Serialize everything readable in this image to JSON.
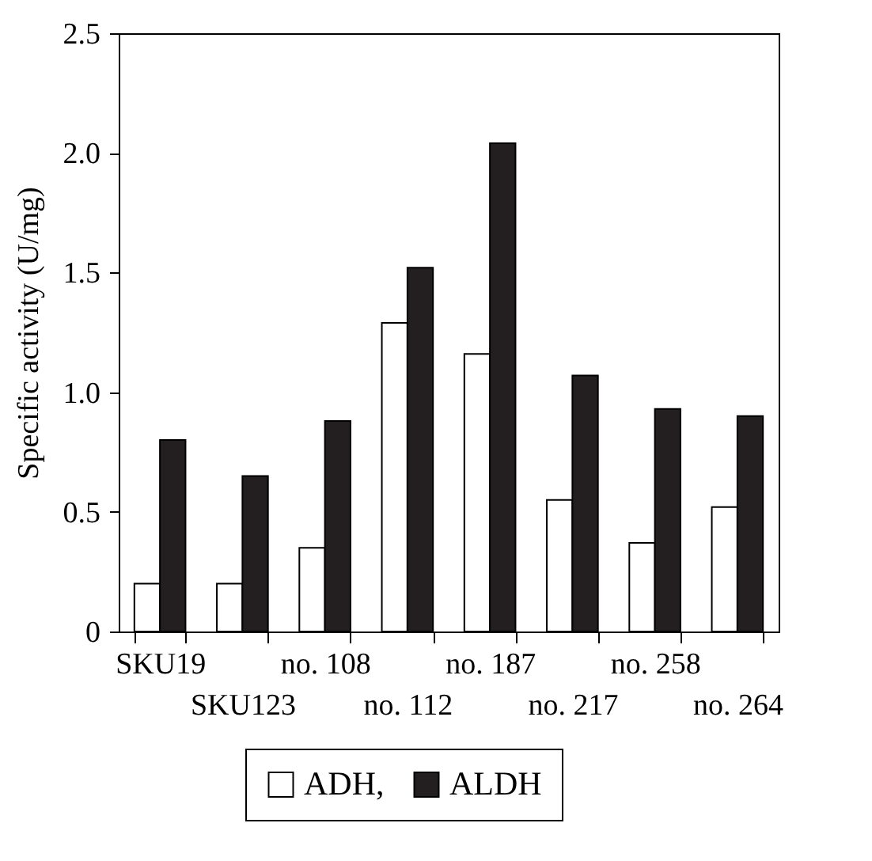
{
  "chart_data": {
    "type": "bar",
    "ylabel": "Specific activity (U/mg)",
    "categories": [
      "SKU19",
      "SKU123",
      "no. 108",
      "no. 112",
      "no. 187",
      "no. 217",
      "no. 258",
      "no. 264"
    ],
    "series": [
      {
        "name": "ADH,",
        "color": "#ffffff",
        "values": [
          0.2,
          0.2,
          0.35,
          1.29,
          1.16,
          0.55,
          0.37,
          0.52
        ]
      },
      {
        "name": "ALDH",
        "color": "#231f20",
        "values": [
          0.8,
          0.65,
          0.88,
          1.52,
          2.04,
          1.07,
          0.93,
          0.9
        ]
      }
    ],
    "ylim": [
      0,
      2.5
    ],
    "yticks": [
      0,
      {
        "value": 0.5,
        "label": "0.5"
      },
      {
        "value": 1,
        "label": "1.0"
      },
      {
        "value": 1.5,
        "label": "1.5"
      },
      {
        "value": 2,
        "label": "2.0"
      },
      {
        "value": 2.5,
        "label": "2.5"
      }
    ],
    "grid": false,
    "legend": "bottom"
  }
}
